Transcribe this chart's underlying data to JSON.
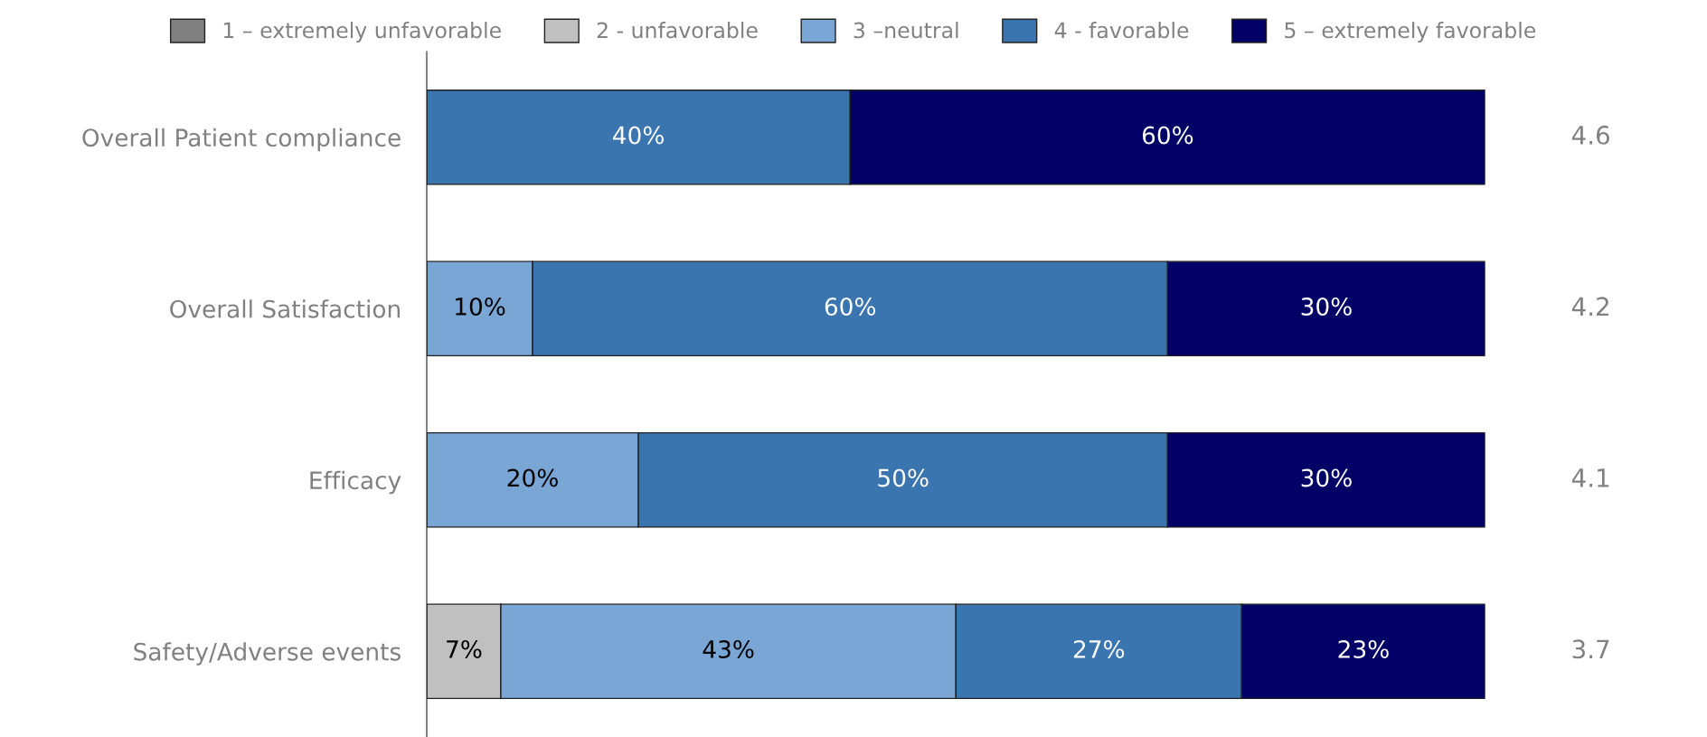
{
  "chart_data": {
    "type": "bar",
    "orientation": "horizontal",
    "stacked": true,
    "legend": "top",
    "grid": false,
    "tick_labels": "y",
    "categories": [
      "Overall Patient compliance",
      "Overall Satisfaction",
      "Efficacy",
      "Safety/Adverse events"
    ],
    "series": [
      {
        "name": "1 – extremely unfavorable",
        "color": "#808080",
        "values": [
          null,
          null,
          null,
          null
        ],
        "value_labels": [
          null,
          null,
          null,
          null
        ]
      },
      {
        "name": "2 - unfavorable",
        "color": "#c0c0c0",
        "values": [
          null,
          null,
          null,
          7
        ],
        "value_labels": [
          null,
          null,
          null,
          "7%"
        ]
      },
      {
        "name": "3 –neutral",
        "color": "#7aa6d6",
        "values": [
          null,
          10,
          20,
          43
        ],
        "value_labels": [
          null,
          "10%",
          "20%",
          "43%"
        ]
      },
      {
        "name": "4 - favorable",
        "color": "#3a75b0",
        "values": [
          40,
          60,
          50,
          27
        ],
        "value_labels": [
          "40%",
          "60%",
          "50%",
          "27%"
        ]
      },
      {
        "name": "5 – extremely favorable",
        "color": "#000066",
        "values": [
          60,
          30,
          30,
          23
        ],
        "value_labels": [
          "60%",
          "30%",
          "30%",
          "23%"
        ]
      }
    ],
    "annotations": [
      "4.6",
      "4.2",
      "4.1",
      "3.7"
    ]
  }
}
